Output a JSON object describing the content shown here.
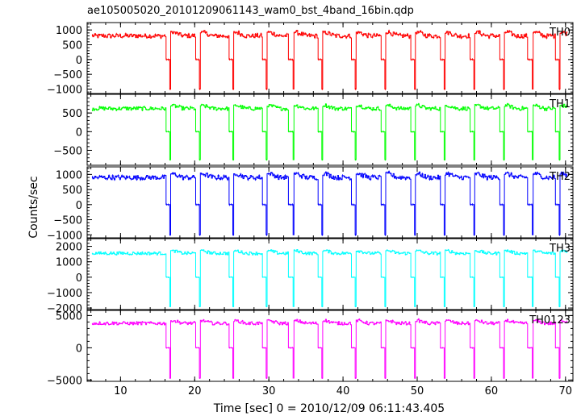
{
  "chart_data": {
    "type": "line",
    "title": "ae105005020_20101209061143_wam0_bst_4band_16bin.qdp",
    "xlabel": "Time [sec] 0 = 2010/12/09 06:11:43.405",
    "ylabel": "Counts/sec",
    "xlim": [
      5.5,
      71
    ],
    "x_ticks": [
      10,
      20,
      30,
      40,
      50,
      60,
      70
    ],
    "x_tick_labels": [
      "10",
      "20",
      "30",
      "40",
      "50",
      "60",
      "70"
    ],
    "grid": false,
    "drop_times": [
      16.1,
      20.1,
      24.6,
      29.1,
      32.7,
      36.6,
      41.1,
      45.1,
      49.1,
      53.1,
      57.1,
      61.1,
      64.9,
      68.6
    ],
    "series": [
      {
        "name": "TH0",
        "color": "#ff0000",
        "ylim": [
          -1150,
          1250
        ],
        "y_ticks": [
          -1000,
          -500,
          0,
          500,
          1000
        ],
        "y_tick_labels": [
          "−1000",
          "−500",
          "0",
          "500",
          "1000"
        ],
        "baseline": 800,
        "peak": 950,
        "min": -1000,
        "step_level": 0
      },
      {
        "name": "TH1",
        "color": "#00ff00",
        "ylim": [
          -900,
          1000
        ],
        "y_ticks": [
          -500,
          0,
          500
        ],
        "y_tick_labels": [
          "−500",
          "0",
          "500"
        ],
        "baseline": 620,
        "peak": 720,
        "min": -750,
        "step_level": 0
      },
      {
        "name": "TH2",
        "color": "#0000ff",
        "ylim": [
          -1100,
          1250
        ],
        "y_ticks": [
          -1000,
          -500,
          0,
          500,
          1000
        ],
        "y_tick_labels": [
          "−1000",
          "−500",
          "0",
          "500",
          "1000"
        ],
        "baseline": 900,
        "peak": 1050,
        "min": -1000,
        "step_level": 0
      },
      {
        "name": "TH3",
        "color": "#00ffff",
        "ylim": [
          -2100,
          2500
        ],
        "y_ticks": [
          -2000,
          -1000,
          0,
          1000,
          2000
        ],
        "y_tick_labels": [
          "−2000",
          "−1000",
          "0",
          "1000",
          "2000"
        ],
        "baseline": 1550,
        "peak": 1750,
        "min": -1900,
        "step_level": 0
      },
      {
        "name": "TH0123",
        "color": "#ff00ff",
        "ylim": [
          -5200,
          5800
        ],
        "y_ticks": [
          -5000,
          0,
          5000
        ],
        "y_tick_labels": [
          "−5000",
          "0",
          "5000"
        ],
        "baseline": 3800,
        "peak": 4300,
        "min": -4700,
        "step_level": 0
      }
    ]
  }
}
